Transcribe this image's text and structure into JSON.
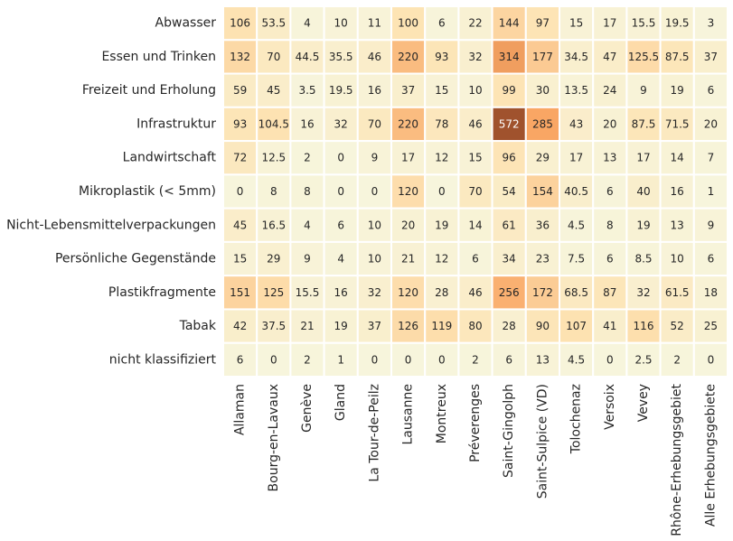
{
  "chart_data": {
    "type": "heatmap",
    "title": "",
    "xlabel": "",
    "ylabel": "",
    "colorbar": false,
    "color_scale": [
      "#f7f5dc",
      "#fde3b3",
      "#f9a664",
      "#a0522d"
    ],
    "rows": [
      "Abwasser",
      "Essen und Trinken",
      "Freizeit und Erholung",
      "Infrastruktur",
      "Landwirtschaft",
      "Mikroplastik (< 5mm)",
      "Nicht-Lebensmittelverpackungen",
      "Persönliche Gegenstände",
      "Plastikfragmente",
      "Tabak",
      "nicht klassifiziert"
    ],
    "columns": [
      "Allaman",
      "Bourg-en-Lavaux",
      "Genève",
      "Gland",
      "La Tour-de-Peilz",
      "Lausanne",
      "Montreux",
      "Préverenges",
      "Saint-Gingolph",
      "Saint-Sulpice (VD)",
      "Tolochenaz",
      "Versoix",
      "Vevey",
      "Rhône-Erhebungsgebiet",
      "Alle Erhebungsgebiete"
    ],
    "values": [
      [
        106,
        53.5,
        4,
        10,
        11,
        100,
        6,
        22,
        144,
        97,
        15,
        17,
        15.5,
        19.5,
        3
      ],
      [
        132,
        70,
        44.5,
        35.5,
        46,
        220,
        93,
        32,
        314,
        177,
        34.5,
        47,
        125.5,
        87.5,
        37
      ],
      [
        59,
        45,
        3.5,
        19.5,
        16,
        37,
        15,
        10,
        99,
        30,
        13.5,
        24,
        9,
        19,
        6
      ],
      [
        93,
        104.5,
        16,
        32,
        70,
        220,
        78,
        46,
        572,
        285,
        43,
        20,
        87.5,
        71.5,
        20
      ],
      [
        72,
        12.5,
        2,
        0,
        9,
        17,
        12,
        15,
        96,
        29,
        17,
        13,
        17,
        14,
        7
      ],
      [
        0,
        8,
        8,
        0,
        0,
        120,
        0,
        70,
        54,
        154,
        40.5,
        6,
        40,
        16,
        1
      ],
      [
        45,
        16.5,
        4,
        6,
        10,
        20,
        19,
        14,
        61,
        36,
        4.5,
        8,
        19,
        13,
        9
      ],
      [
        15,
        29,
        9,
        4,
        10,
        21,
        12,
        6,
        34,
        23,
        7.5,
        6,
        8.5,
        10,
        6
      ],
      [
        151,
        125,
        15.5,
        16,
        32,
        120,
        28,
        46,
        256,
        172,
        68.5,
        87,
        32,
        61.5,
        18
      ],
      [
        42,
        37.5,
        21,
        19,
        37,
        126,
        119,
        80,
        28,
        90,
        107,
        41,
        116,
        52,
        25
      ],
      [
        6,
        0,
        2,
        1,
        0,
        0,
        0,
        2,
        6,
        13,
        4.5,
        0,
        2.5,
        2,
        0
      ]
    ]
  }
}
